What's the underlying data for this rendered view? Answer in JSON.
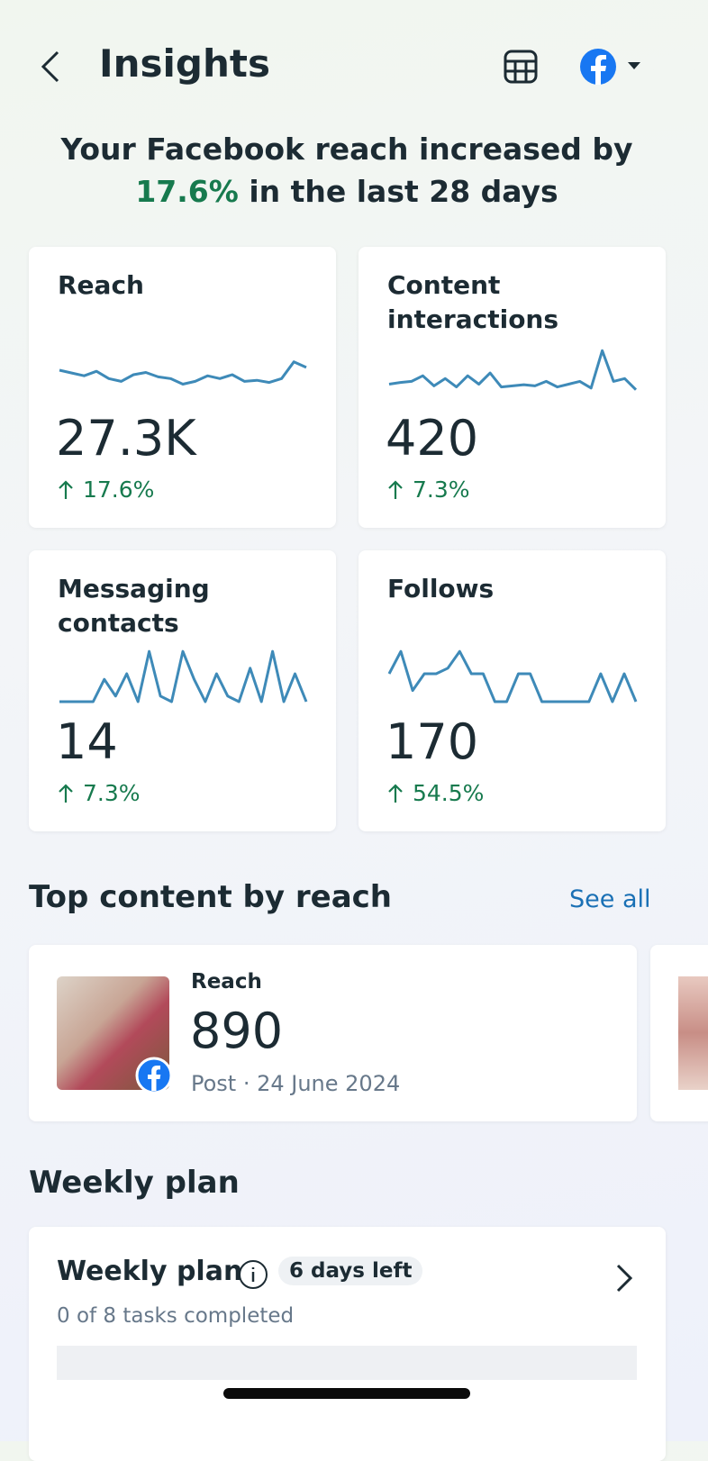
{
  "header": {
    "title": "Insights"
  },
  "summary": {
    "text_before": "Your Facebook reach increased by",
    "highlight": "17.6%",
    "text_after": "in the last 28 days"
  },
  "metrics": [
    {
      "label": "Reach",
      "value": "27.3K",
      "change": "17.6%",
      "trend": [
        50,
        45,
        40,
        48,
        35,
        30,
        42,
        46,
        38,
        35,
        25,
        30,
        40,
        35,
        42,
        30,
        32,
        28,
        35,
        65,
        55
      ]
    },
    {
      "label": "Content interactions",
      "value": "420",
      "change": "7.3%",
      "trend": [
        25,
        28,
        30,
        40,
        22,
        35,
        20,
        40,
        25,
        45,
        20,
        22,
        24,
        22,
        30,
        20,
        25,
        30,
        18,
        85,
        30,
        35,
        15
      ]
    },
    {
      "label": "Messaging contacts",
      "value": "14",
      "change": "7.3%",
      "trend": [
        0,
        0,
        0,
        0,
        40,
        10,
        50,
        0,
        90,
        10,
        0,
        90,
        40,
        0,
        50,
        10,
        0,
        60,
        0,
        90,
        0,
        50,
        0
      ]
    },
    {
      "label": "Follows",
      "value": "170",
      "change": "54.5%",
      "trend": [
        50,
        90,
        20,
        50,
        50,
        60,
        90,
        50,
        50,
        0,
        0,
        50,
        50,
        0,
        0,
        0,
        0,
        0,
        50,
        0,
        50,
        0
      ]
    }
  ],
  "top_content": {
    "title": "Top content by reach",
    "see_all": "See all",
    "items": [
      {
        "label": "Reach",
        "value": "890",
        "meta": "Post · 24 June 2024"
      }
    ]
  },
  "weekly_plan": {
    "section_title": "Weekly plan",
    "card_title": "Weekly plan",
    "badge": "6 days left",
    "progress": "0 of 8 tasks completed"
  }
}
